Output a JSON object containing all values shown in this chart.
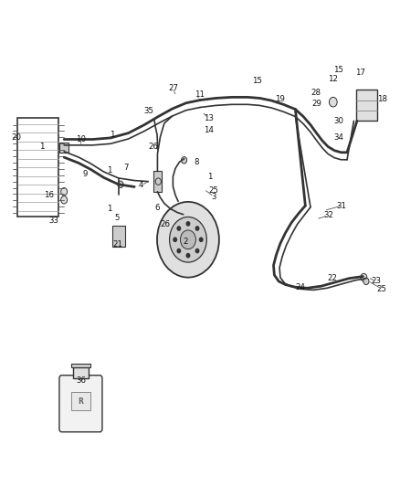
{
  "bg_color": "#ffffff",
  "line_color": "#333333",
  "label_color": "#111111",
  "fig_width": 4.38,
  "fig_height": 5.33,
  "dpi": 100
}
